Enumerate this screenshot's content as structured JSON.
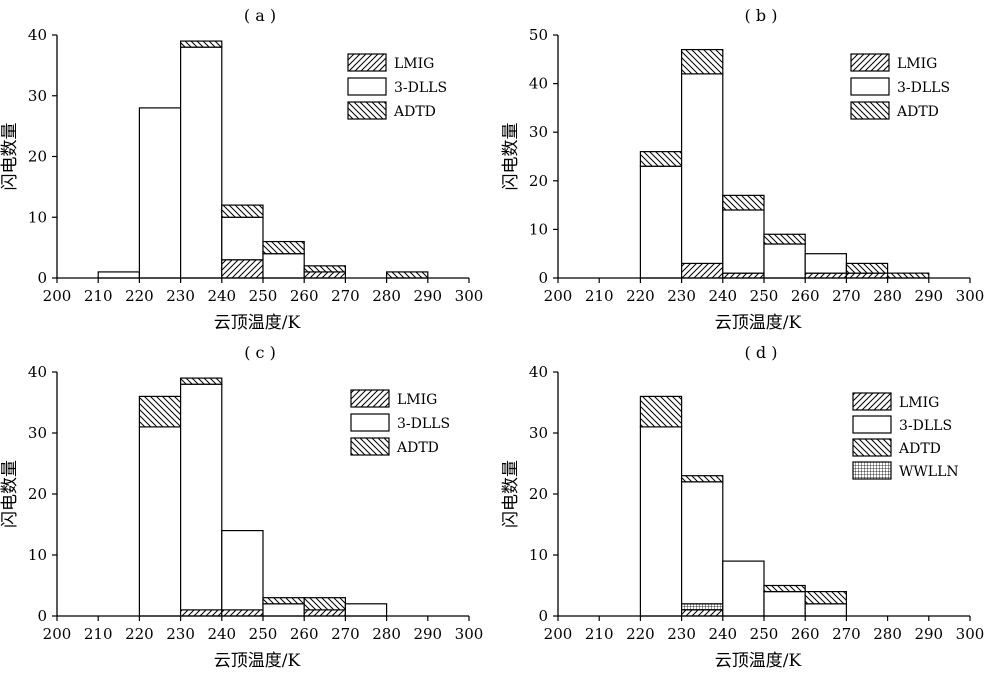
{
  "chart_data": [
    {
      "type": "bar",
      "title": "( a )",
      "xlabel": "云顶温度/K",
      "ylabel": "闪电数量",
      "xlim": [
        200,
        300
      ],
      "ylim": [
        0,
        40
      ],
      "xticks": [
        200,
        210,
        220,
        230,
        240,
        250,
        260,
        270,
        280,
        290,
        300
      ],
      "yticks": [
        0,
        10,
        20,
        30,
        40
      ],
      "bins": [
        [
          210,
          220
        ],
        [
          220,
          230
        ],
        [
          230,
          240
        ],
        [
          240,
          250
        ],
        [
          250,
          260
        ],
        [
          260,
          270
        ],
        [
          270,
          280
        ],
        [
          280,
          290
        ]
      ],
      "stacked": true,
      "legend_position": "top-right",
      "series": [
        {
          "name": "LMIG",
          "pattern": "hatch-forward",
          "values": [
            0,
            0,
            0,
            3,
            0,
            1,
            0,
            0
          ]
        },
        {
          "name": "3-DLLS",
          "pattern": "empty",
          "values": [
            1,
            28,
            38,
            7,
            4,
            0,
            0,
            0
          ]
        },
        {
          "name": "ADTD",
          "pattern": "hatch-back",
          "values": [
            0,
            0,
            1,
            2,
            2,
            1,
            0,
            1
          ]
        }
      ]
    },
    {
      "type": "bar",
      "title": "( b )",
      "xlabel": "云顶温度/K",
      "ylabel": "闪电数量",
      "xlim": [
        200,
        300
      ],
      "ylim": [
        0,
        50
      ],
      "xticks": [
        200,
        210,
        220,
        230,
        240,
        250,
        260,
        270,
        280,
        290,
        300
      ],
      "yticks": [
        0,
        10,
        20,
        30,
        40,
        50
      ],
      "bins": [
        [
          210,
          220
        ],
        [
          220,
          230
        ],
        [
          230,
          240
        ],
        [
          240,
          250
        ],
        [
          250,
          260
        ],
        [
          260,
          270
        ],
        [
          270,
          280
        ],
        [
          280,
          290
        ]
      ],
      "stacked": true,
      "legend_position": "top-right",
      "series": [
        {
          "name": "LMIG",
          "pattern": "hatch-forward",
          "values": [
            0,
            0,
            3,
            1,
            0,
            1,
            1,
            0
          ]
        },
        {
          "name": "3-DLLS",
          "pattern": "empty",
          "values": [
            0,
            23,
            39,
            13,
            7,
            4,
            0,
            0
          ]
        },
        {
          "name": "ADTD",
          "pattern": "hatch-back",
          "values": [
            0,
            3,
            5,
            3,
            2,
            0,
            2,
            1
          ]
        }
      ]
    },
    {
      "type": "bar",
      "title": "( c )",
      "xlabel": "云顶温度/K",
      "ylabel": "闪电数量",
      "xlim": [
        200,
        300
      ],
      "ylim": [
        0,
        40
      ],
      "xticks": [
        200,
        210,
        220,
        230,
        240,
        250,
        260,
        270,
        280,
        290,
        300
      ],
      "yticks": [
        0,
        10,
        20,
        30,
        40
      ],
      "bins": [
        [
          210,
          220
        ],
        [
          220,
          230
        ],
        [
          230,
          240
        ],
        [
          240,
          250
        ],
        [
          250,
          260
        ],
        [
          260,
          270
        ],
        [
          270,
          280
        ],
        [
          280,
          290
        ]
      ],
      "stacked": true,
      "legend_position": "top-right",
      "series": [
        {
          "name": "LMIG",
          "pattern": "hatch-forward",
          "values": [
            0,
            0,
            1,
            1,
            0,
            1,
            0,
            0
          ]
        },
        {
          "name": "3-DLLS",
          "pattern": "empty",
          "values": [
            0,
            31,
            37,
            13,
            2,
            0,
            2,
            0
          ]
        },
        {
          "name": "ADTD",
          "pattern": "hatch-back",
          "values": [
            0,
            5,
            1,
            0,
            1,
            2,
            0,
            0
          ]
        }
      ]
    },
    {
      "type": "bar",
      "title": "( d )",
      "xlabel": "云顶温度/K",
      "ylabel": "闪电数量",
      "xlim": [
        200,
        300
      ],
      "ylim": [
        0,
        40
      ],
      "xticks": [
        200,
        210,
        220,
        230,
        240,
        250,
        260,
        270,
        280,
        290,
        300
      ],
      "yticks": [
        0,
        10,
        20,
        30,
        40
      ],
      "bins": [
        [
          210,
          220
        ],
        [
          220,
          230
        ],
        [
          230,
          240
        ],
        [
          240,
          250
        ],
        [
          250,
          260
        ],
        [
          260,
          270
        ],
        [
          270,
          280
        ],
        [
          280,
          290
        ]
      ],
      "stacked": true,
      "legend_position": "top-right",
      "series": [
        {
          "name": "LMIG",
          "pattern": "hatch-forward",
          "values": [
            0,
            0,
            1,
            0,
            0,
            0,
            0,
            0
          ]
        },
        {
          "name": "WWLLN",
          "pattern": "grid",
          "values": [
            0,
            0,
            1,
            0,
            0,
            0,
            0,
            0
          ]
        },
        {
          "name": "3-DLLS",
          "pattern": "empty",
          "values": [
            0,
            31,
            20,
            9,
            4,
            2,
            0,
            0
          ]
        },
        {
          "name": "ADTD",
          "pattern": "hatch-back",
          "values": [
            0,
            5,
            1,
            0,
            1,
            2,
            0,
            0
          ]
        }
      ],
      "legend_order": [
        "LMIG",
        "3-DLLS",
        "ADTD",
        "WWLLN"
      ]
    }
  ]
}
